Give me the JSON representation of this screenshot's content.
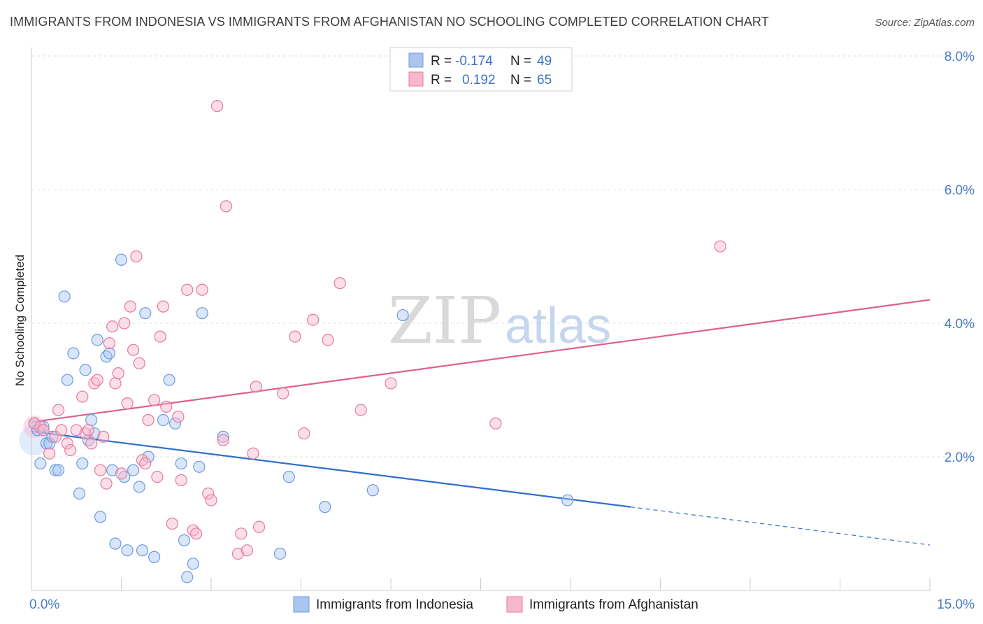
{
  "title": "IMMIGRANTS FROM INDONESIA VS IMMIGRANTS FROM AFGHANISTAN NO SCHOOLING COMPLETED CORRELATION CHART",
  "source": "Source: ZipAtlas.com",
  "watermark": {
    "zip": "ZIP",
    "atlas": "atlas"
  },
  "chart_data": {
    "type": "scatter",
    "ylabel": "No Schooling Completed",
    "xlim": [
      0,
      15
    ],
    "ylim": [
      0,
      8
    ],
    "x_tick_labels": [
      "0.0%",
      "15.0%"
    ],
    "y_ticks": [
      2,
      4,
      6,
      8
    ],
    "y_tick_labels": [
      "2.0%",
      "4.0%",
      "6.0%",
      "8.0%"
    ],
    "legend": {
      "r_label": "R =",
      "n_label": "N =",
      "entries": [
        {
          "r": "-0.174",
          "n": "49"
        },
        {
          "r": "0.192",
          "n": "65"
        }
      ]
    },
    "series": [
      {
        "name": "Immigrants from Indonesia",
        "color": "#6b9be0",
        "fill": "#aac6ef",
        "trend": {
          "x0": 0.0,
          "y0": 2.38,
          "x1": 10.0,
          "y1": 1.25,
          "dash_to_x": 15.0,
          "dash_to_y": 0.68
        },
        "points": [
          [
            0.05,
            2.5
          ],
          [
            0.1,
            2.4
          ],
          [
            0.15,
            1.9
          ],
          [
            0.2,
            2.45
          ],
          [
            0.25,
            2.2
          ],
          [
            0.3,
            2.2
          ],
          [
            0.35,
            2.3
          ],
          [
            0.4,
            1.8
          ],
          [
            0.45,
            1.8
          ],
          [
            0.55,
            4.4
          ],
          [
            0.6,
            3.15
          ],
          [
            0.7,
            3.55
          ],
          [
            0.8,
            1.45
          ],
          [
            0.85,
            1.9
          ],
          [
            0.9,
            3.3
          ],
          [
            0.95,
            2.25
          ],
          [
            1.0,
            2.55
          ],
          [
            1.05,
            2.35
          ],
          [
            1.1,
            3.75
          ],
          [
            1.15,
            1.1
          ],
          [
            1.25,
            3.5
          ],
          [
            1.3,
            3.55
          ],
          [
            1.35,
            1.8
          ],
          [
            1.4,
            0.7
          ],
          [
            1.5,
            4.95
          ],
          [
            1.55,
            1.7
          ],
          [
            1.6,
            0.6
          ],
          [
            1.7,
            1.8
          ],
          [
            1.8,
            1.55
          ],
          [
            1.85,
            0.6
          ],
          [
            1.9,
            4.15
          ],
          [
            1.95,
            2.0
          ],
          [
            2.05,
            0.5
          ],
          [
            2.2,
            2.55
          ],
          [
            2.3,
            3.15
          ],
          [
            2.4,
            2.5
          ],
          [
            2.5,
            1.9
          ],
          [
            2.55,
            0.75
          ],
          [
            2.6,
            0.2
          ],
          [
            2.7,
            0.4
          ],
          [
            2.8,
            1.85
          ],
          [
            2.85,
            4.15
          ],
          [
            3.2,
            2.3
          ],
          [
            4.3,
            1.7
          ],
          [
            4.15,
            0.55
          ],
          [
            4.9,
            1.25
          ],
          [
            5.7,
            1.5
          ],
          [
            6.2,
            4.12
          ],
          [
            8.95,
            1.35
          ]
        ]
      },
      {
        "name": "Immigrants from Afghanistan",
        "color": "#e8789c",
        "fill": "#f6b9cb",
        "trend": {
          "x0": 0.0,
          "y0": 2.52,
          "x1": 15.0,
          "y1": 4.35
        },
        "points": [
          [
            0.05,
            2.5
          ],
          [
            0.15,
            2.45
          ],
          [
            0.2,
            2.4
          ],
          [
            0.3,
            2.05
          ],
          [
            0.4,
            2.3
          ],
          [
            0.45,
            2.7
          ],
          [
            0.5,
            2.4
          ],
          [
            0.6,
            2.2
          ],
          [
            0.65,
            2.1
          ],
          [
            0.75,
            2.4
          ],
          [
            0.85,
            2.9
          ],
          [
            0.9,
            2.35
          ],
          [
            0.95,
            2.4
          ],
          [
            1.0,
            2.2
          ],
          [
            1.05,
            3.1
          ],
          [
            1.1,
            3.15
          ],
          [
            1.15,
            1.8
          ],
          [
            1.2,
            2.3
          ],
          [
            1.25,
            1.6
          ],
          [
            1.3,
            3.7
          ],
          [
            1.35,
            3.95
          ],
          [
            1.4,
            3.1
          ],
          [
            1.45,
            3.25
          ],
          [
            1.5,
            1.75
          ],
          [
            1.55,
            4.0
          ],
          [
            1.6,
            2.8
          ],
          [
            1.65,
            4.25
          ],
          [
            1.7,
            3.6
          ],
          [
            1.75,
            5.0
          ],
          [
            1.8,
            3.4
          ],
          [
            1.85,
            1.95
          ],
          [
            1.9,
            1.9
          ],
          [
            1.95,
            2.55
          ],
          [
            2.05,
            2.85
          ],
          [
            2.1,
            1.7
          ],
          [
            2.15,
            3.8
          ],
          [
            2.2,
            4.25
          ],
          [
            2.25,
            2.75
          ],
          [
            2.35,
            1.0
          ],
          [
            2.45,
            2.6
          ],
          [
            2.5,
            1.65
          ],
          [
            2.6,
            4.5
          ],
          [
            2.7,
            0.9
          ],
          [
            2.75,
            0.85
          ],
          [
            2.85,
            4.5
          ],
          [
            2.95,
            1.45
          ],
          [
            3.0,
            1.35
          ],
          [
            3.1,
            7.25
          ],
          [
            3.2,
            2.25
          ],
          [
            3.25,
            5.75
          ],
          [
            3.45,
            0.55
          ],
          [
            3.5,
            0.85
          ],
          [
            3.6,
            0.6
          ],
          [
            3.7,
            2.05
          ],
          [
            3.75,
            3.05
          ],
          [
            3.8,
            0.95
          ],
          [
            4.2,
            2.95
          ],
          [
            4.4,
            3.8
          ],
          [
            4.55,
            2.35
          ],
          [
            4.7,
            4.05
          ],
          [
            4.95,
            3.75
          ],
          [
            5.15,
            4.6
          ],
          [
            5.5,
            2.7
          ],
          [
            6.0,
            3.1
          ],
          [
            7.75,
            2.5
          ],
          [
            11.5,
            5.15
          ]
        ]
      }
    ]
  }
}
